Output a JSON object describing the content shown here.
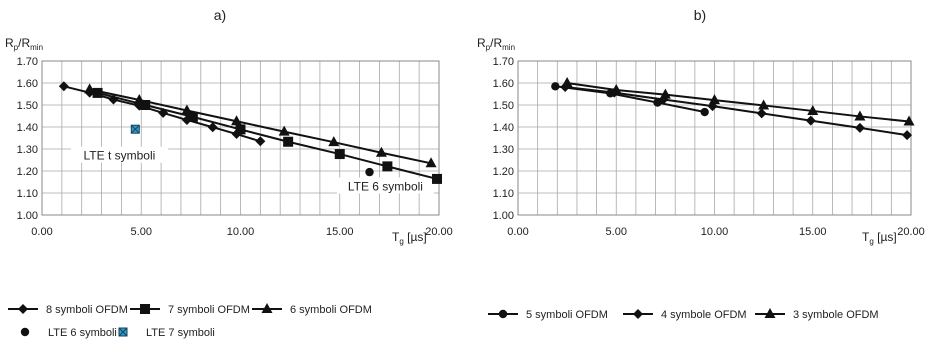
{
  "chart_data": [
    {
      "panel": "a)",
      "type": "line",
      "ylabel_main": "R",
      "ylabel_sub1": "p",
      "ylabel_sep": "/R",
      "ylabel_sub2": "min",
      "xlabel_main": "T",
      "xlabel_sub": "g",
      "xlabel_unit": " [µs]",
      "xlim": [
        0,
        20
      ],
      "ylim": [
        1.0,
        1.7
      ],
      "x_ticks": [
        "0.00",
        "5.00",
        "10.00",
        "15.00",
        "20.00"
      ],
      "y_ticks": [
        "1.00",
        "1.10",
        "1.20",
        "1.30",
        "1.40",
        "1.50",
        "1.60",
        "1.70"
      ],
      "grid": true,
      "series": [
        {
          "name": "8 symboli OFDM",
          "marker": "diamond",
          "x": [
            1.1,
            2.4,
            3.6,
            4.9,
            6.1,
            7.3,
            8.6,
            9.8,
            11.0
          ],
          "y": [
            1.585,
            1.556,
            1.525,
            1.497,
            1.464,
            1.432,
            1.399,
            1.368,
            1.335
          ]
        },
        {
          "name": "7 symboli OFDM",
          "marker": "square",
          "x": [
            2.8,
            5.2,
            7.6,
            10.0,
            12.4,
            15.0,
            17.4,
            19.9
          ],
          "y": [
            1.555,
            1.5,
            1.446,
            1.389,
            1.333,
            1.277,
            1.221,
            1.164
          ]
        },
        {
          "name": "6 symboli OFDM",
          "marker": "triangle",
          "x": [
            2.4,
            4.9,
            7.3,
            9.8,
            12.2,
            14.7,
            17.1,
            19.6
          ],
          "y": [
            1.571,
            1.523,
            1.475,
            1.426,
            1.379,
            1.331,
            1.283,
            1.235
          ]
        }
      ],
      "points": [
        {
          "name": "LTE 6 symboli",
          "marker": "circle",
          "x": 16.5,
          "y": 1.195
        },
        {
          "name": "LTE 7 symboli",
          "marker": "xbox",
          "x": 4.7,
          "y": 1.39
        }
      ],
      "annotations": [
        {
          "text": "LTE t symboli",
          "x": 3.9,
          "y": 1.265
        },
        {
          "text": "LTE 6 symboli",
          "x": 17.3,
          "y": 1.125
        }
      ]
    },
    {
      "panel": "b)",
      "type": "line",
      "ylabel_main": "R",
      "ylabel_sub1": "p",
      "ylabel_sep": "/R",
      "ylabel_sub2": "min",
      "xlabel_main": "T",
      "xlabel_sub": "g",
      "xlabel_unit": " [µs]",
      "xlim": [
        0,
        20
      ],
      "ylim": [
        1.0,
        1.7
      ],
      "x_ticks": [
        "0.00",
        "5.00",
        "10.00",
        "15.00",
        "20.00"
      ],
      "y_ticks": [
        "1.00",
        "1.10",
        "1.20",
        "1.30",
        "1.40",
        "1.50",
        "1.60",
        "1.70"
      ],
      "grid": true,
      "series": [
        {
          "name": "5 symboli OFDM",
          "marker": "circle",
          "x": [
            1.9,
            4.7,
            7.1,
            9.5
          ],
          "y": [
            1.585,
            1.553,
            1.511,
            1.468
          ]
        },
        {
          "name": "4 symbole OFDM",
          "marker": "diamond",
          "x": [
            2.4,
            4.9,
            7.4,
            9.9,
            12.4,
            14.9,
            17.4,
            19.8
          ],
          "y": [
            1.582,
            1.556,
            1.525,
            1.495,
            1.462,
            1.429,
            1.396,
            1.363
          ]
        },
        {
          "name": "3 symbole OFDM",
          "marker": "triangle",
          "x": [
            2.5,
            5.0,
            7.5,
            10.0,
            12.5,
            15.0,
            17.4,
            19.9
          ],
          "y": [
            1.6,
            1.568,
            1.547,
            1.522,
            1.498,
            1.473,
            1.448,
            1.425
          ]
        }
      ],
      "points": [],
      "annotations": []
    }
  ]
}
